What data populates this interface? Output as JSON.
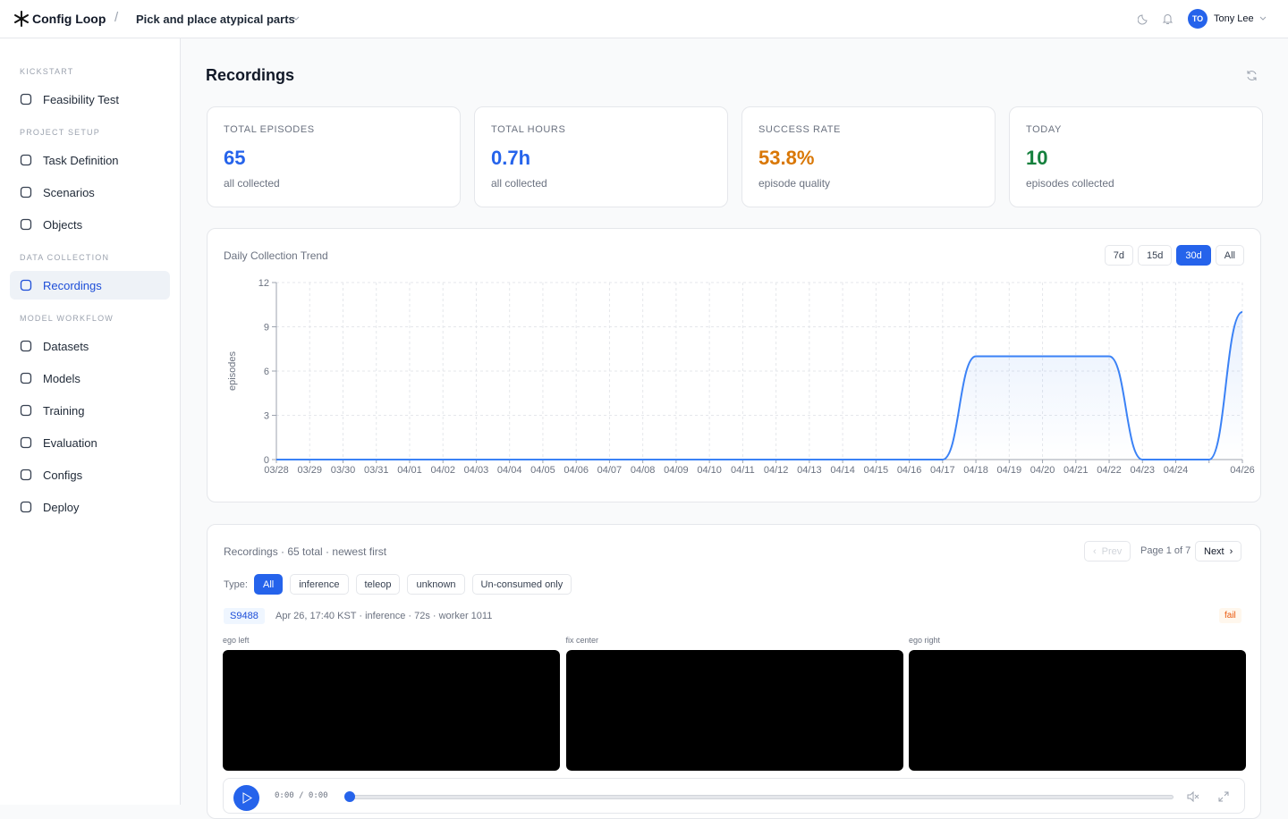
{
  "header": {
    "brand": "Config Loop",
    "project": "Pick and place atypical parts",
    "user_initials": "TO",
    "user_name": "Tony Lee"
  },
  "sidebar": {
    "sections": [
      {
        "title": "KICKSTART",
        "items": [
          "Feasibility Test"
        ]
      },
      {
        "title": "PROJECT SETUP",
        "items": [
          "Task Definition",
          "Scenarios",
          "Objects"
        ]
      },
      {
        "title": "DATA COLLECTION",
        "items": [
          "Recordings"
        ]
      },
      {
        "title": "MODEL WORKFLOW",
        "items": [
          "Datasets",
          "Models",
          "Training",
          "Evaluation",
          "Configs",
          "Deploy"
        ]
      }
    ]
  },
  "page_title": "Recordings",
  "stats": [
    {
      "label": "TOTAL EPISODES",
      "value": "65",
      "note": "all collected",
      "color": "#2563eb"
    },
    {
      "label": "TOTAL HOURS",
      "value": "0.7h",
      "note": "all collected",
      "color": "#2563eb"
    },
    {
      "label": "SUCCESS RATE",
      "value": "53.8%",
      "note": "episode quality",
      "color": "#d97706"
    },
    {
      "label": "TODAY",
      "value": "10",
      "note": "episodes collected",
      "color": "#15803d"
    }
  ],
  "chart_data": {
    "type": "line",
    "title": "Daily Collection Trend",
    "ranges": [
      "7d",
      "15d",
      "30d",
      "All"
    ],
    "ylabel": "episodes",
    "categories": [
      "03/28",
      "03/29",
      "03/30",
      "03/31",
      "04/01",
      "04/02",
      "04/03",
      "04/04",
      "04/05",
      "04/06",
      "04/07",
      "04/08",
      "04/09",
      "04/10",
      "04/11",
      "04/12",
      "04/13",
      "04/14",
      "04/15",
      "04/16",
      "04/17",
      "04/18",
      "04/19",
      "04/20",
      "04/21",
      "04/22",
      "04/23",
      "04/24",
      null,
      "04/26"
    ],
    "series": [
      {
        "name": "episodes",
        "color": "#3b82f6",
        "values": [
          0,
          0,
          0,
          0,
          0,
          0,
          0,
          0,
          0,
          0,
          0,
          0,
          0,
          0,
          0,
          0,
          0,
          0,
          0,
          0,
          0,
          7,
          7,
          7,
          7,
          7,
          0,
          0,
          0,
          10
        ]
      }
    ],
    "ylim": [
      0,
      12
    ],
    "yticks": [
      0,
      3,
      6,
      9,
      12
    ],
    "grid": true
  },
  "recordings": {
    "title": "Recordings · 65 total · newest first",
    "prev": "Prev",
    "page": "Page 1 of 7",
    "next": "Next",
    "type_label": "Type:",
    "filters": [
      "All",
      "inference",
      "teleop",
      "unknown",
      "Un-consumed only"
    ],
    "item": {
      "id": "S9488",
      "meta": "Apr 26, 17:40 KST · inference · 72s · worker 1011",
      "status": "fail",
      "videos": [
        "ego left",
        "fix center",
        "ego right"
      ],
      "time": "0:00 / 0:00"
    }
  }
}
